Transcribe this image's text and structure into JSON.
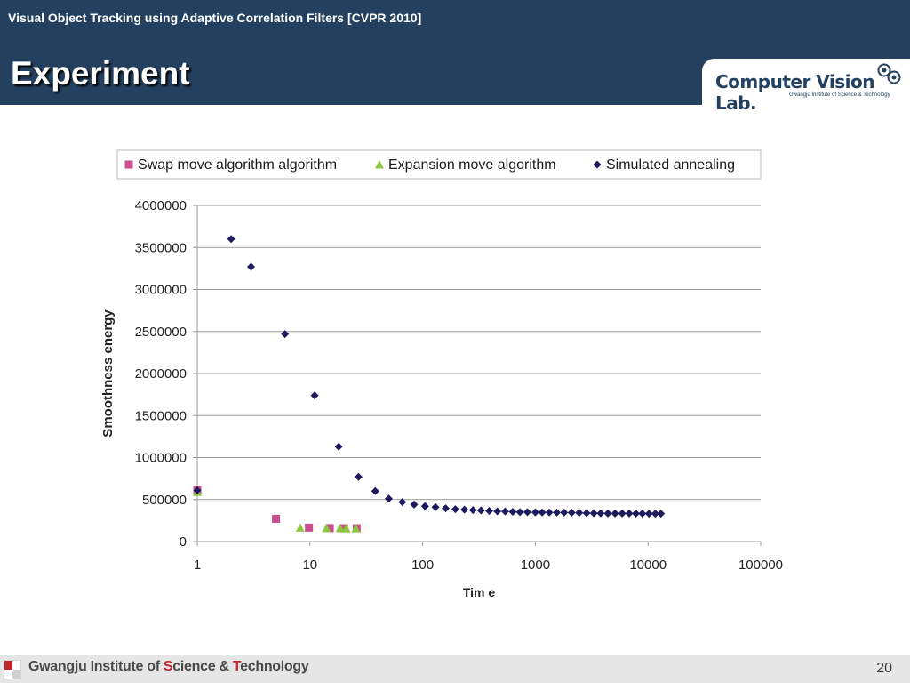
{
  "header": {
    "subtitle": "Visual Object Tracking using Adaptive Correlation Filters [CVPR 2010]",
    "title": "Experiment"
  },
  "logo": {
    "name": "Computer Vision Lab.",
    "institution": "Gwangju Institute of Science & Technology"
  },
  "footer": {
    "institution_parts": [
      "Gwangju Institute of ",
      "S",
      "cience & ",
      "T",
      "echnology"
    ],
    "page_number": "20"
  },
  "colors": {
    "header_bg": "#24405f",
    "swap": "#c8508f",
    "expansion": "#8cc63e",
    "annealing": "#1f1a5e",
    "footer_red": "#c0282b"
  },
  "chart_data": {
    "type": "scatter",
    "xlabel": "Tim e",
    "ylabel": "Smoothness energy",
    "xscale": "log",
    "xlim": [
      1,
      100000
    ],
    "ylim": [
      0,
      4000000
    ],
    "x_ticks": [
      "1",
      "10",
      "100",
      "1000",
      "10000",
      "100000"
    ],
    "y_ticks": [
      "0",
      "500000",
      "1000000",
      "1500000",
      "2000000",
      "2500000",
      "3000000",
      "3500000",
      "4000000"
    ],
    "grid": "horizontal",
    "legend_position": "top",
    "series": [
      {
        "name": "Swap move algorithm algorithm",
        "marker": "square",
        "color": "#c8508f",
        "points": [
          [
            1,
            615000
          ],
          [
            5,
            270000
          ],
          [
            9.8,
            165000
          ],
          [
            15,
            160000
          ],
          [
            20,
            158000
          ],
          [
            26,
            158000
          ]
        ]
      },
      {
        "name": "Expansion move algorithm",
        "marker": "triangle",
        "color": "#8cc63e",
        "points": [
          [
            1,
            590000
          ],
          [
            8.2,
            165000
          ],
          [
            14,
            160000
          ],
          [
            18.5,
            160000
          ],
          [
            21,
            158000
          ],
          [
            25.5,
            158000
          ]
        ]
      },
      {
        "name": "Simulated annealing",
        "marker": "diamond",
        "color": "#1f1a5e",
        "points": [
          [
            1,
            610000
          ],
          [
            2,
            3600000
          ],
          [
            3,
            3270000
          ],
          [
            6,
            2470000
          ],
          [
            11,
            1740000
          ],
          [
            18,
            1130000
          ],
          [
            27,
            770000
          ],
          [
            38,
            600000
          ],
          [
            50,
            510000
          ],
          [
            66,
            470000
          ],
          [
            84,
            440000
          ],
          [
            105,
            420000
          ],
          [
            130,
            410000
          ],
          [
            160,
            395000
          ],
          [
            195,
            385000
          ],
          [
            235,
            380000
          ],
          [
            280,
            375000
          ],
          [
            330,
            370000
          ],
          [
            390,
            365000
          ],
          [
            460,
            360000
          ],
          [
            540,
            358000
          ],
          [
            630,
            355000
          ],
          [
            730,
            350000
          ],
          [
            850,
            350000
          ],
          [
            1000,
            348000
          ],
          [
            1150,
            347000
          ],
          [
            1330,
            346000
          ],
          [
            1550,
            345000
          ],
          [
            1800,
            345000
          ],
          [
            2100,
            344000
          ],
          [
            2450,
            343000
          ],
          [
            2850,
            338000
          ],
          [
            3300,
            337000
          ],
          [
            3800,
            336000
          ],
          [
            4400,
            335000
          ],
          [
            5100,
            335000
          ],
          [
            5900,
            334000
          ],
          [
            6800,
            334000
          ],
          [
            7800,
            333000
          ],
          [
            8900,
            333000
          ],
          [
            10200,
            332000
          ],
          [
            11600,
            332000
          ],
          [
            13000,
            332000
          ]
        ]
      }
    ]
  }
}
